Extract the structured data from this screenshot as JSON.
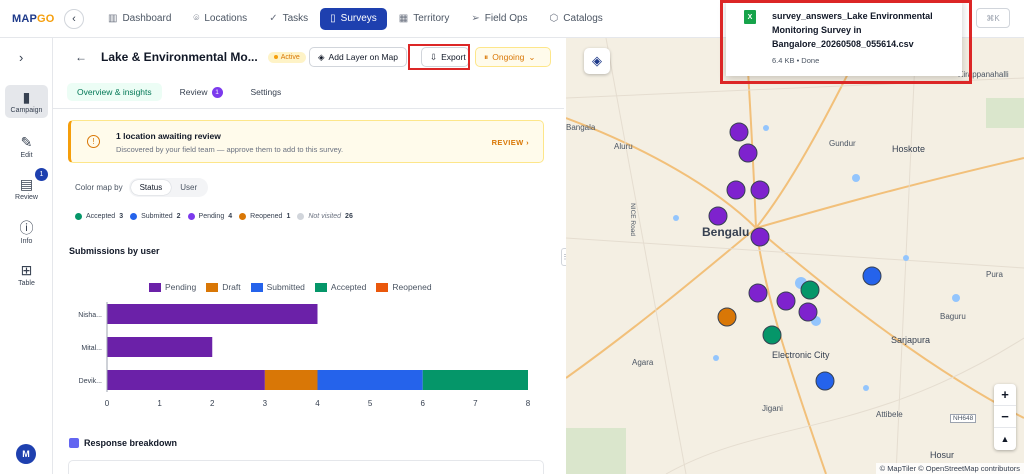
{
  "app": {
    "logo_main": "MAP",
    "logo_accent": "GO"
  },
  "nav": {
    "items": [
      {
        "label": "Dashboard",
        "icon": "bar-chart-icon"
      },
      {
        "label": "Locations",
        "icon": "pin-icon"
      },
      {
        "label": "Tasks",
        "icon": "check-icon"
      },
      {
        "label": "Surveys",
        "icon": "clipboard-icon",
        "active": true
      },
      {
        "label": "Territory",
        "icon": "map-icon"
      },
      {
        "label": "Field Ops",
        "icon": "send-icon"
      },
      {
        "label": "Catalogs",
        "icon": "box-icon"
      }
    ],
    "shortcut": "⌘K"
  },
  "sidebar": {
    "items": [
      {
        "label": "Campaign",
        "icon": "clipboard-icon"
      },
      {
        "label": "Edit",
        "icon": "edit-icon"
      },
      {
        "label": "Review",
        "icon": "document-icon",
        "badge": "1"
      },
      {
        "label": "Info",
        "icon": "info-icon"
      },
      {
        "label": "Table",
        "icon": "grid-icon"
      }
    ],
    "avatar": "M"
  },
  "panel": {
    "title": "Lake & Environmental Mo...",
    "status": "Active",
    "add_layer": "Add Layer on Map",
    "export": "Export",
    "ongoing": "Ongoing",
    "tabs": [
      {
        "label": "Overview & insights"
      },
      {
        "label": "Review",
        "count": "1"
      },
      {
        "label": "Settings"
      }
    ],
    "notice": {
      "title": "1 location awaiting review",
      "body": "Discovered by your field team — approve them to add to this survey.",
      "action": "REVIEW"
    },
    "color_map": {
      "label": "Color map by",
      "options": [
        "Status",
        "User"
      ]
    },
    "status_counts": [
      {
        "label": "Accepted",
        "count": "3",
        "color": "#059669"
      },
      {
        "label": "Submitted",
        "count": "2",
        "color": "#2563eb"
      },
      {
        "label": "Pending",
        "count": "4",
        "color": "#7c3aed"
      },
      {
        "label": "Reopened",
        "count": "1",
        "color": "#d97706"
      },
      {
        "label": "Not visited",
        "count": "26",
        "color": "#d1d5db"
      }
    ],
    "submissions_title": "Submissions by user",
    "response_title": "Response breakdown"
  },
  "chart_data": {
    "type": "bar",
    "orientation": "horizontal",
    "stacked": true,
    "categories": [
      "Nisha...",
      "Mital...",
      "Devik..."
    ],
    "series": [
      {
        "name": "Pending",
        "color": "#6b21a8",
        "values": [
          4,
          2,
          3
        ]
      },
      {
        "name": "Draft",
        "color": "#d97706",
        "values": [
          0,
          0,
          1
        ]
      },
      {
        "name": "Submitted",
        "color": "#2563eb",
        "values": [
          0,
          0,
          2
        ]
      },
      {
        "name": "Accepted",
        "color": "#059669",
        "values": [
          0,
          0,
          2
        ]
      },
      {
        "name": "Reopened",
        "color": "#ea580c",
        "values": [
          0,
          0,
          0
        ]
      }
    ],
    "xlim": [
      0,
      8
    ],
    "xticks": [
      "0",
      "1",
      "2",
      "3",
      "4",
      "5",
      "6",
      "7",
      "8"
    ],
    "legend": "top"
  },
  "map": {
    "labels": [
      "Bangala",
      "Aluru",
      "Gundur",
      "Hoskote",
      "Bengalu",
      "Pura",
      "Agara",
      "Electronic City",
      "Sarjapura",
      "Baguru",
      "Attibele",
      "Jigani",
      "Hosur",
      "Kirappanahalli",
      "NICE Road",
      "NH648"
    ],
    "attribution": "© MapTiler © OpenStreetMap contributors"
  },
  "download": {
    "filename": "survey_answers_Lake Environmental Monitoring Survey in Bangalore_20260508_055614.csv",
    "meta": "6.4 KB • Done",
    "file_icon_glyph": "X"
  }
}
